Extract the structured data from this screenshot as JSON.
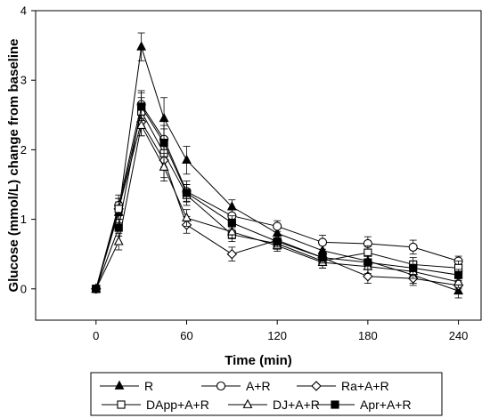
{
  "chart_data": {
    "type": "line",
    "xlabel": "Time (min)",
    "ylabel": "Glucose (mmol/L) change from baseline",
    "xlim": [
      -40,
      255
    ],
    "ylim": [
      -0.45,
      4
    ],
    "xticks": [
      0,
      60,
      120,
      180,
      240
    ],
    "yticks": [
      0,
      1,
      2,
      3,
      4
    ],
    "grid": false,
    "legend_placement": "bottom",
    "x": [
      0,
      15,
      30,
      45,
      60,
      90,
      120,
      150,
      180,
      210,
      240
    ],
    "series": [
      {
        "name": "R",
        "marker": "triangle-filled",
        "values": [
          0,
          1.1,
          3.48,
          2.45,
          1.85,
          1.18,
          0.8,
          0.55,
          0.4,
          0.2,
          -0.03
        ],
        "errors": [
          0,
          0.15,
          0.2,
          0.3,
          0.2,
          0.1,
          0.07,
          0.08,
          0.1,
          0.12,
          0.1
        ]
      },
      {
        "name": "A+R",
        "marker": "circle-open",
        "values": [
          0,
          1.2,
          2.65,
          2.15,
          1.4,
          1.05,
          0.9,
          0.67,
          0.65,
          0.6,
          0.4
        ],
        "errors": [
          0,
          0.15,
          0.2,
          0.2,
          0.15,
          0.1,
          0.08,
          0.1,
          0.1,
          0.1,
          0.07
        ]
      },
      {
        "name": "Ra+A+R",
        "marker": "diamond-open",
        "values": [
          0,
          1.15,
          2.4,
          1.85,
          0.92,
          0.5,
          0.7,
          0.45,
          0.18,
          0.15,
          0.05
        ],
        "errors": [
          0,
          0.15,
          0.2,
          0.25,
          0.12,
          0.1,
          0.08,
          0.08,
          0.1,
          0.1,
          0.05
        ]
      },
      {
        "name": "DApp+A+R",
        "marker": "square-open",
        "values": [
          0,
          1.15,
          2.55,
          1.95,
          1.35,
          0.78,
          0.65,
          0.4,
          0.52,
          0.35,
          0.3
        ],
        "errors": [
          0,
          0.15,
          0.2,
          0.2,
          0.15,
          0.1,
          0.08,
          0.1,
          0.1,
          0.1,
          0.1
        ]
      },
      {
        "name": "DJ+A+R",
        "marker": "triangle-open",
        "values": [
          0,
          0.68,
          2.35,
          1.75,
          1.02,
          0.82,
          0.62,
          0.38,
          0.32,
          0.25,
          0.1
        ],
        "errors": [
          0,
          0.12,
          0.15,
          0.2,
          0.12,
          0.1,
          0.08,
          0.08,
          0.1,
          0.1,
          0.08
        ]
      },
      {
        "name": "Apr+A+R",
        "marker": "square-filled",
        "values": [
          0,
          0.88,
          2.62,
          2.1,
          1.38,
          0.95,
          0.68,
          0.45,
          0.38,
          0.3,
          0.2
        ],
        "errors": [
          0,
          0.12,
          0.2,
          0.2,
          0.12,
          0.1,
          0.08,
          0.08,
          0.1,
          0.1,
          0.08
        ]
      }
    ]
  }
}
